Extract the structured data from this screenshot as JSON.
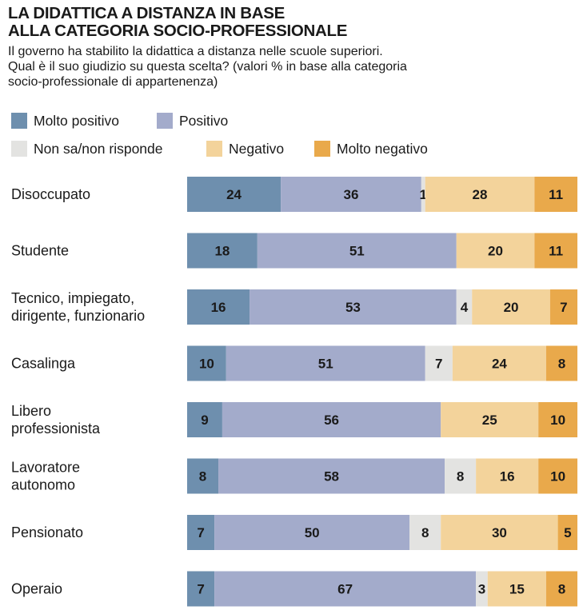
{
  "title_lines": [
    "LA DIDATTICA A DISTANZA IN BASE",
    "ALLA CATEGORIA SOCIO-PROFESSIONALE"
  ],
  "subtitle_lines": [
    "Il governo ha stabilito la didattica a distanza nelle scuole superiori.",
    "Qual è il suo giudizio su questa scelta? (valori % in base alla categoria",
    "socio-professionale di appartenenza)"
  ],
  "legend": [
    {
      "label": "Molto positivo",
      "color": "#6e8fae"
    },
    {
      "label": "Positivo",
      "color": "#a3abcb"
    },
    {
      "label": "Non sa/non risponde",
      "color": "#e3e3e1"
    },
    {
      "label": "Negativo",
      "color": "#f3d39b"
    },
    {
      "label": "Molto negativo",
      "color": "#e9a94b"
    }
  ],
  "chart_data": {
    "type": "bar",
    "orientation": "horizontal",
    "stacked": true,
    "units": "%",
    "categories": [
      [
        "Disoccupato"
      ],
      [
        "Studente"
      ],
      [
        "Tecnico, impiegato,",
        "dirigente, funzionario"
      ],
      [
        "Casalinga"
      ],
      [
        "Libero",
        "professionista"
      ],
      [
        "Lavoratore",
        "autonomo"
      ],
      [
        "Pensionato"
      ],
      [
        "Operaio"
      ]
    ],
    "series": [
      {
        "name": "Molto positivo",
        "color": "#6e8fae",
        "values": [
          24,
          18,
          16,
          10,
          9,
          8,
          7,
          7
        ]
      },
      {
        "name": "Positivo",
        "color": "#a3abcb",
        "values": [
          36,
          51,
          53,
          51,
          56,
          58,
          50,
          67
        ]
      },
      {
        "name": "Non sa/non risponde",
        "color": "#e3e3e1",
        "values": [
          1,
          0,
          4,
          7,
          0,
          8,
          8,
          3
        ]
      },
      {
        "name": "Negativo",
        "color": "#f3d39b",
        "values": [
          28,
          20,
          20,
          24,
          25,
          16,
          30,
          15
        ]
      },
      {
        "name": "Molto negativo",
        "color": "#e9a94b",
        "values": [
          11,
          11,
          7,
          8,
          10,
          10,
          5,
          8
        ]
      }
    ]
  }
}
